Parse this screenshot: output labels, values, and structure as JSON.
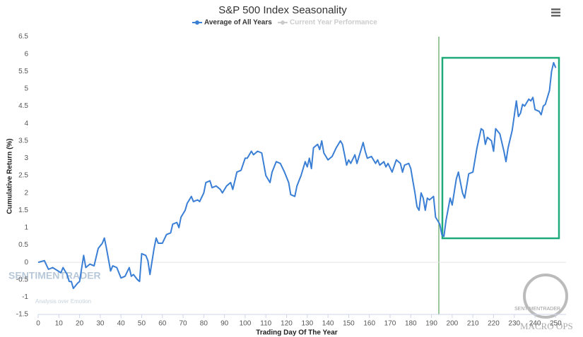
{
  "chart_data": {
    "type": "line",
    "title": "S&P 500 Index Seasonality",
    "x_label": "Trading Day Of The Year",
    "y_label": "Cumulative Return (%)",
    "x": [
      0,
      3,
      5,
      7,
      11,
      12,
      14,
      15,
      16,
      17,
      19,
      20,
      22,
      23,
      25,
      27,
      29,
      31,
      32,
      33,
      35,
      36,
      38,
      40,
      42,
      44,
      45,
      46,
      48,
      49,
      50,
      52,
      53,
      54,
      56,
      57,
      58,
      60,
      62,
      64,
      65,
      67,
      68,
      69,
      71,
      72,
      74,
      75,
      77,
      78,
      80,
      81,
      83,
      84,
      86,
      88,
      89,
      91,
      93,
      94,
      96,
      98,
      100,
      101,
      103,
      104,
      106,
      108,
      110,
      112,
      113,
      115,
      117,
      119,
      121,
      122,
      124,
      125,
      127,
      129,
      130,
      131,
      132,
      133,
      135,
      136,
      137,
      138,
      140,
      142,
      144,
      146,
      147,
      148,
      149,
      150,
      151,
      153,
      154,
      156,
      157,
      158,
      159,
      161,
      163,
      164,
      165,
      167,
      168,
      169,
      171,
      173,
      175,
      176,
      177,
      179,
      180,
      181,
      182,
      183,
      184,
      185,
      186,
      187,
      188,
      189,
      191,
      192,
      193,
      194,
      195,
      196,
      197,
      199,
      200,
      202,
      203,
      205,
      206,
      208,
      210,
      212,
      214,
      215,
      216,
      217,
      219,
      220,
      221,
      223,
      225,
      226,
      227,
      229,
      231,
      232,
      233,
      234,
      235,
      237,
      238,
      239,
      240,
      242,
      243,
      244,
      245,
      247,
      248,
      249,
      250
    ],
    "series": [
      {
        "name": "Average of All Years",
        "color": "#3a7fd5",
        "values": [
          0,
          0.05,
          -0.2,
          -0.15,
          -0.3,
          -0.15,
          -0.35,
          -0.55,
          -0.55,
          -0.75,
          -0.6,
          -0.55,
          0.2,
          -0.15,
          -0.05,
          -0.1,
          0.4,
          0.55,
          0.7,
          0.4,
          -0.25,
          -0.1,
          -0.15,
          -0.45,
          -0.4,
          -0.15,
          -0.4,
          -0.35,
          -0.5,
          -0.55,
          0.25,
          0.2,
          0.05,
          -0.35,
          0.4,
          0.7,
          0.55,
          0.55,
          0.8,
          0.85,
          1.1,
          1.15,
          1.0,
          1.3,
          1.5,
          1.7,
          1.9,
          1.75,
          1.8,
          1.75,
          2.0,
          2.3,
          2.35,
          2.15,
          2.2,
          2.1,
          2.0,
          2.2,
          2.3,
          2.1,
          2.6,
          2.65,
          3.0,
          3.0,
          3.2,
          3.1,
          3.2,
          3.15,
          2.5,
          2.3,
          2.6,
          2.9,
          2.85,
          2.6,
          2.3,
          1.95,
          1.9,
          2.2,
          2.5,
          2.9,
          2.75,
          3.0,
          2.7,
          3.3,
          3.4,
          3.25,
          3.5,
          3.15,
          2.95,
          3.05,
          3.3,
          3.5,
          3.4,
          3.1,
          2.8,
          2.95,
          2.85,
          3.1,
          2.85,
          3.25,
          3.45,
          3.2,
          3.0,
          3.05,
          2.85,
          2.95,
          2.8,
          2.9,
          2.75,
          2.85,
          2.6,
          2.95,
          2.85,
          2.6,
          2.8,
          2.85,
          2.7,
          2.35,
          2.0,
          1.6,
          1.5,
          2.0,
          1.85,
          1.5,
          1.85,
          1.8,
          1.9,
          1.3,
          1.2,
          1.1,
          0.8,
          0.75,
          1.2,
          1.85,
          1.65,
          2.4,
          2.6,
          2.0,
          1.85,
          2.55,
          2.6,
          3.3,
          3.85,
          3.8,
          3.4,
          3.6,
          3.5,
          3.2,
          3.85,
          3.7,
          3.2,
          2.9,
          3.3,
          3.8,
          4.65,
          4.2,
          4.3,
          4.55,
          4.5,
          4.7,
          4.65,
          4.75,
          4.4,
          4.35,
          4.25,
          4.5,
          4.55,
          4.95,
          5.5,
          5.75,
          5.6
        ]
      }
    ],
    "inactive_series": [
      {
        "name": "Current Year Performance",
        "color": "#cccccc"
      }
    ],
    "xlim": [
      0,
      255
    ],
    "xticks": [
      0,
      10,
      20,
      30,
      40,
      50,
      60,
      70,
      80,
      90,
      100,
      110,
      120,
      130,
      140,
      150,
      160,
      170,
      180,
      190,
      200,
      210,
      220,
      230,
      240,
      250
    ],
    "ylim": [
      -1.5,
      6.5
    ],
    "yticks": [
      -1.5,
      -1,
      -0.5,
      0,
      0.5,
      1,
      1.5,
      2,
      2.5,
      3,
      3.5,
      4,
      4.5,
      5,
      5.5,
      6,
      6.5
    ],
    "grid": false,
    "watermarks": [
      "SENTIMENTRADER",
      "Analysis over Emotion",
      "SENTIMENTRADER",
      "MACRO OPS"
    ]
  }
}
